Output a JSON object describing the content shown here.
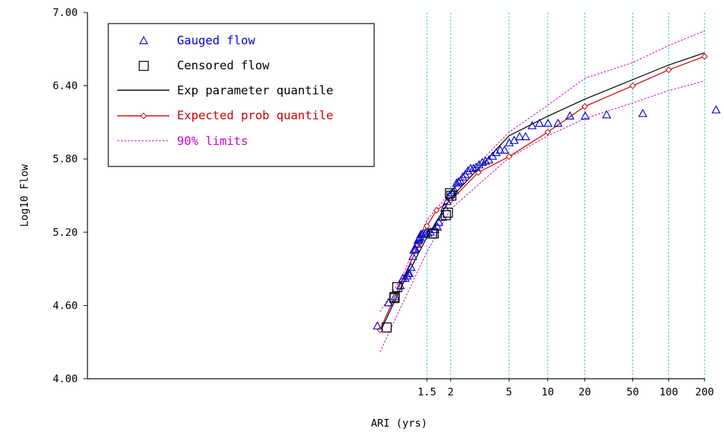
{
  "chart_data": {
    "type": "scatter",
    "title": "",
    "xlabel": "ARI (yrs)",
    "ylabel": "Log10 Flow",
    "ylim": [
      4.0,
      7.0
    ],
    "yticks": [
      "4.00",
      "4.60",
      "5.20",
      "5.80",
      "6.40",
      "7.00"
    ],
    "xscale": "gumbel-probability",
    "xticks": [
      {
        "value": 1.5,
        "label": "1.5"
      },
      {
        "value": 2,
        "label": "2"
      },
      {
        "value": 5,
        "label": "5"
      },
      {
        "value": 10,
        "label": "10"
      },
      {
        "value": 20,
        "label": "20"
      },
      {
        "value": 50,
        "label": "50"
      },
      {
        "value": 100,
        "label": "100"
      },
      {
        "value": 200,
        "label": "200"
      }
    ],
    "grid": "vertical dashed cyan at x ticks",
    "legend_position": "top-left",
    "legend": [
      {
        "key": "gauged",
        "label": "Gauged flow",
        "color": "#0000cc",
        "marker": "triangle"
      },
      {
        "key": "censored",
        "label": "Censored flow",
        "color": "#000000",
        "marker": "square"
      },
      {
        "key": "exp",
        "label": "Exp parameter quantile",
        "color": "#000000",
        "marker": "line"
      },
      {
        "key": "expected",
        "label": "Expected prob quantile",
        "color": "#cc0000",
        "marker": "diamond-line"
      },
      {
        "key": "limits",
        "label": "90% limits",
        "color": "#cc00cc",
        "marker": "dashed-line"
      }
    ],
    "series": [
      {
        "key": "gauged",
        "name": "Gauged flow",
        "points": [
          [
            1.06,
            4.43
          ],
          [
            1.11,
            4.62
          ],
          [
            1.15,
            4.67
          ],
          [
            1.19,
            4.76
          ],
          [
            1.21,
            4.82
          ],
          [
            1.23,
            4.82
          ],
          [
            1.25,
            4.84
          ],
          [
            1.26,
            4.86
          ],
          [
            1.27,
            4.86
          ],
          [
            1.29,
            4.91
          ],
          [
            1.31,
            5.0
          ],
          [
            1.32,
            5.05
          ],
          [
            1.33,
            5.06
          ],
          [
            1.34,
            5.06
          ],
          [
            1.36,
            5.1
          ],
          [
            1.37,
            5.13
          ],
          [
            1.38,
            5.14
          ],
          [
            1.39,
            5.15
          ],
          [
            1.4,
            5.16
          ],
          [
            1.41,
            5.18
          ],
          [
            1.43,
            5.18
          ],
          [
            1.45,
            5.19
          ],
          [
            1.48,
            5.19
          ],
          [
            1.52,
            5.19
          ],
          [
            1.56,
            5.2
          ],
          [
            1.64,
            5.22
          ],
          [
            1.69,
            5.24
          ],
          [
            1.72,
            5.28
          ],
          [
            1.8,
            5.32
          ],
          [
            1.85,
            5.4
          ],
          [
            1.91,
            5.45
          ],
          [
            1.97,
            5.5
          ],
          [
            2.04,
            5.52
          ],
          [
            2.11,
            5.54
          ],
          [
            2.17,
            5.6
          ],
          [
            2.23,
            5.61
          ],
          [
            2.29,
            5.62
          ],
          [
            2.37,
            5.65
          ],
          [
            2.46,
            5.67
          ],
          [
            2.56,
            5.7
          ],
          [
            2.67,
            5.72
          ],
          [
            2.78,
            5.72
          ],
          [
            2.9,
            5.73
          ],
          [
            3.04,
            5.75
          ],
          [
            3.2,
            5.77
          ],
          [
            3.37,
            5.78
          ],
          [
            3.56,
            5.79
          ],
          [
            3.78,
            5.82
          ],
          [
            4.02,
            5.85
          ],
          [
            4.3,
            5.87
          ],
          [
            4.63,
            5.87
          ],
          [
            5.02,
            5.93
          ],
          [
            5.47,
            5.95
          ],
          [
            6.02,
            5.98
          ],
          [
            6.69,
            5.98
          ],
          [
            7.53,
            6.07
          ],
          [
            8.61,
            6.09
          ],
          [
            10.06,
            6.09
          ],
          [
            12.1,
            6.09
          ],
          [
            15.13,
            6.15
          ],
          [
            20.18,
            6.15
          ],
          [
            30.31,
            6.16
          ],
          [
            60.64,
            6.17
          ],
          [
            250,
            6.2
          ]
        ]
      },
      {
        "key": "censored",
        "name": "Censored flow",
        "points": [
          [
            1.1,
            4.42
          ],
          [
            1.145,
            4.66
          ],
          [
            1.147,
            4.67
          ],
          [
            1.165,
            4.75
          ],
          [
            1.59,
            5.19
          ],
          [
            1.62,
            5.19
          ],
          [
            1.88,
            5.34
          ],
          [
            1.93,
            5.36
          ],
          [
            1.98,
            5.52
          ],
          [
            2.02,
            5.5
          ]
        ]
      },
      {
        "key": "exp",
        "name": "Exp parameter quantile",
        "points": [
          [
            1.07,
            4.38
          ],
          [
            1.2,
            4.76
          ],
          [
            1.5,
            5.16
          ],
          [
            2,
            5.48
          ],
          [
            5,
            5.99
          ],
          [
            10,
            6.15
          ],
          [
            20,
            6.29
          ],
          [
            50,
            6.45
          ],
          [
            100,
            6.57
          ],
          [
            200,
            6.67
          ]
        ]
      },
      {
        "key": "expected",
        "name": "Expected prob quantile",
        "points": [
          [
            1.07,
            4.4
          ],
          [
            1.2,
            4.8
          ],
          [
            1.39,
            5.11
          ],
          [
            1.5,
            5.25
          ],
          [
            1.67,
            5.38
          ],
          [
            2,
            5.46
          ],
          [
            3.0,
            5.69
          ],
          [
            5,
            5.82
          ],
          [
            10,
            6.02
          ],
          [
            20,
            6.23
          ],
          [
            50,
            6.4
          ],
          [
            100,
            6.53
          ],
          [
            200,
            6.64
          ]
        ]
      },
      {
        "key": "limit_upper",
        "name": "90% limits",
        "points": [
          [
            1.07,
            4.55
          ],
          [
            1.2,
            4.83
          ],
          [
            1.5,
            5.3
          ],
          [
            2,
            5.53
          ],
          [
            5,
            6.02
          ],
          [
            10,
            6.24
          ],
          [
            20,
            6.46
          ],
          [
            50,
            6.59
          ],
          [
            100,
            6.73
          ],
          [
            200,
            6.85
          ]
        ]
      },
      {
        "key": "limit_lower",
        "name": "90% limits",
        "points": [
          [
            1.07,
            4.22
          ],
          [
            1.2,
            4.6
          ],
          [
            1.5,
            5.04
          ],
          [
            2,
            5.39
          ],
          [
            5,
            5.81
          ],
          [
            10,
            5.99
          ],
          [
            20,
            6.13
          ],
          [
            50,
            6.26
          ],
          [
            100,
            6.36
          ],
          [
            200,
            6.44
          ]
        ]
      }
    ]
  }
}
